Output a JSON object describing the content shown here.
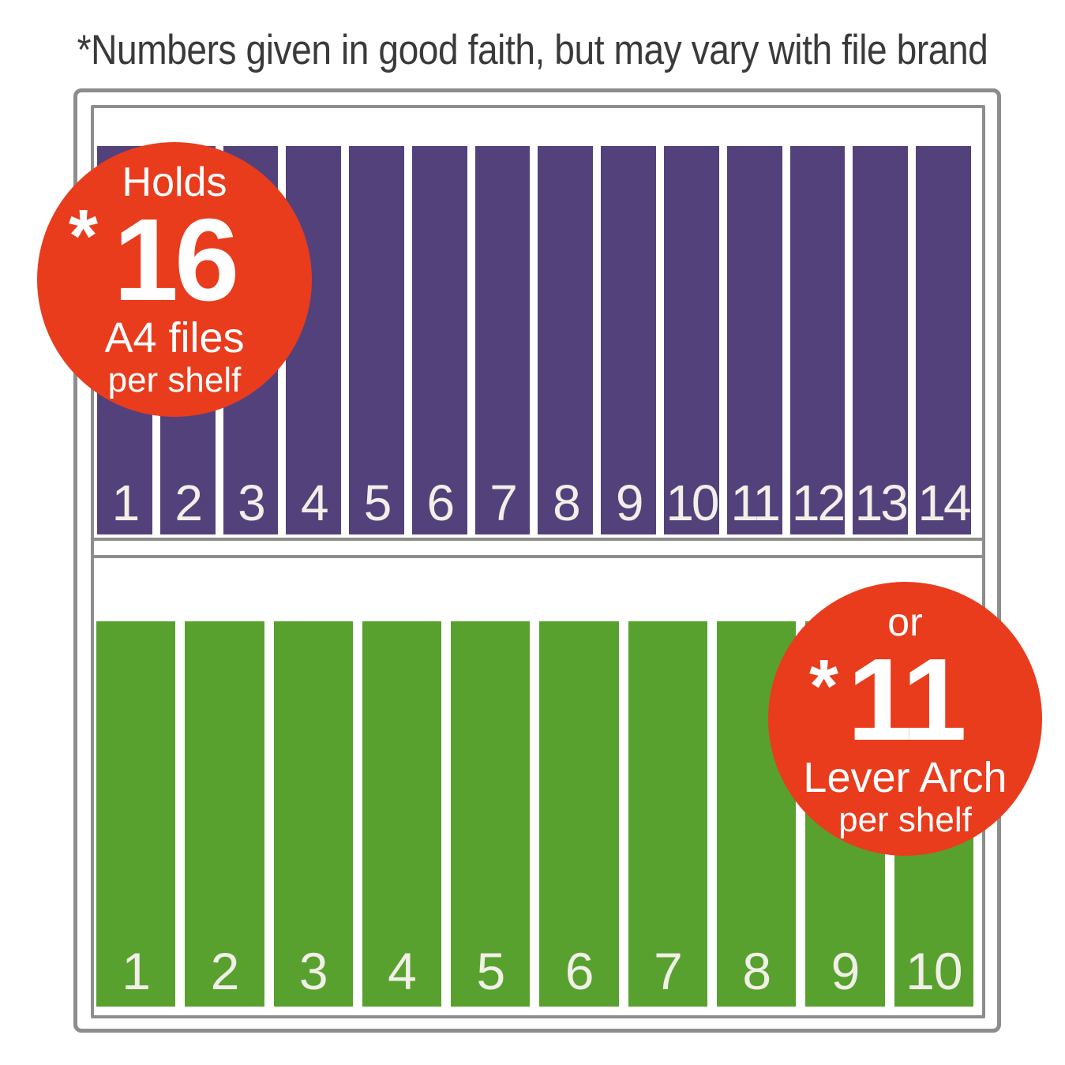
{
  "disclaimer": "*Numbers given in good faith, but may vary with file brand",
  "colors": {
    "a4_file_purple": "#53417b",
    "lever_arch_file_green": "#58a12f",
    "badge_red": "#e93c1d",
    "frame_gray": "#8d8d8d",
    "headline_text": "#3a3a3a",
    "file_number_text": "#f1efe7"
  },
  "shelf_unit": {
    "top_shelf": {
      "file_type": "A4 files",
      "file_count": 14,
      "file_numbers": [
        "1",
        "2",
        "3",
        "4",
        "5",
        "6",
        "7",
        "8",
        "9",
        "10",
        "11",
        "12",
        "13",
        "14"
      ]
    },
    "bottom_shelf": {
      "file_type": "Lever Arch files",
      "file_count": 10,
      "file_numbers": [
        "1",
        "2",
        "3",
        "4",
        "5",
        "6",
        "7",
        "8",
        "9",
        "10"
      ]
    }
  },
  "badges": {
    "a4_capacity": {
      "prefix": "Holds",
      "asterisk": "*",
      "value": "16",
      "unit": "A4 files",
      "suffix": "per shelf"
    },
    "lever_arch_capacity": {
      "prefix": "or",
      "asterisk": "*",
      "value": "11",
      "unit": "Lever Arch",
      "suffix": "per shelf"
    }
  }
}
